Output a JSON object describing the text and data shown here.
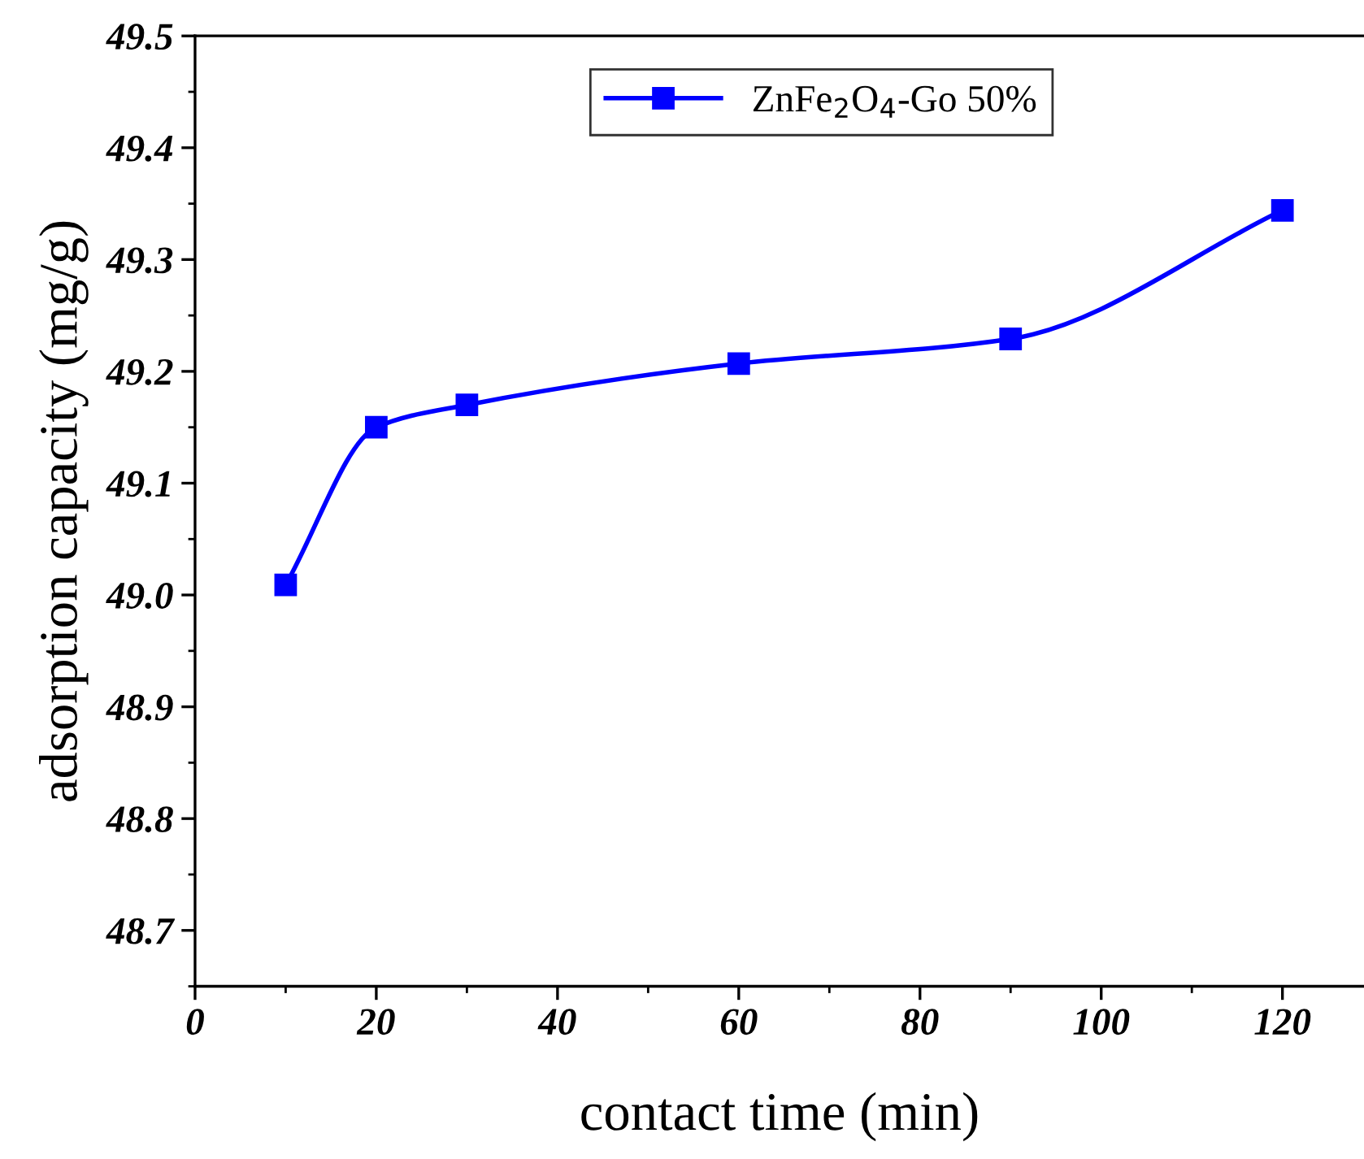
{
  "chart_data": {
    "type": "line",
    "xlabel": "contact time (min)",
    "ylabel": "adsorption capacity (mg/g)",
    "x": [
      10,
      20,
      30,
      60,
      90,
      120
    ],
    "series": [
      {
        "name": "ZnFe$_{2}$O$_{4}$-Go 50%",
        "color": "#0000ff",
        "values": [
          49.009,
          49.15,
          49.17,
          49.207,
          49.229,
          49.344
        ]
      }
    ],
    "xlim": [
      0,
      129
    ],
    "xticks": [
      0,
      20,
      40,
      60,
      80,
      100,
      120
    ],
    "ylim": [
      48.65,
      49.5
    ],
    "yticks": [
      {
        "value": 48.7,
        "label": "48.7"
      },
      {
        "value": 48.8,
        "label": "48.8"
      },
      {
        "value": 48.9,
        "label": "48.9"
      },
      {
        "value": 49.0,
        "label": "49.0"
      },
      {
        "value": 49.1,
        "label": "49.1"
      },
      {
        "value": 49.2,
        "label": "49.2"
      },
      {
        "value": 49.3,
        "label": "49.3"
      },
      {
        "value": 49.4,
        "label": "49.4"
      },
      {
        "value": 49.5,
        "label": "49.5"
      }
    ],
    "marker": "square",
    "line_style": "solid",
    "legend": "top right",
    "grid": false
  }
}
